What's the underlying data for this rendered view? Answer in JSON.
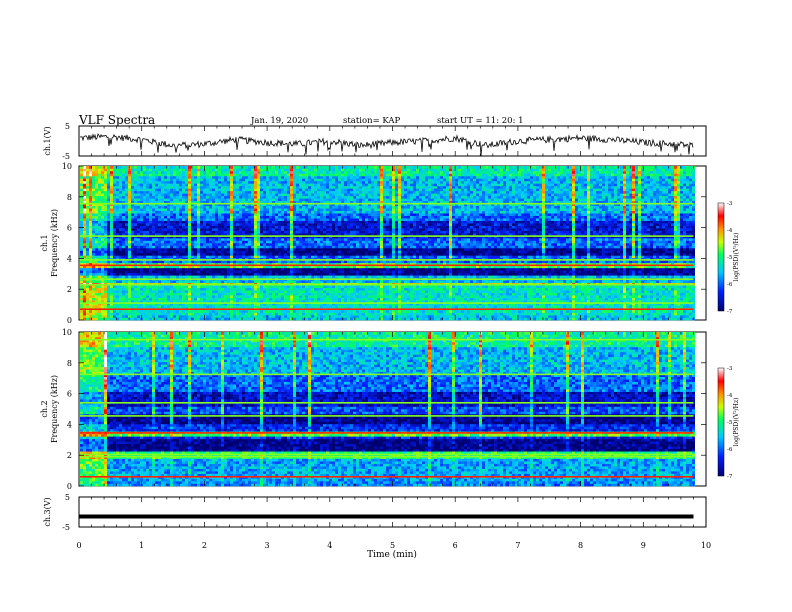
{
  "header": {
    "title": "VLF Spectra",
    "date": "Jan. 19, 2020",
    "station": "station= KAP",
    "start": "start  UT =   11: 20: 1"
  },
  "chart_data": [
    {
      "type": "line",
      "panel": "ch1-waveform",
      "ylabel": "ch.1(V)",
      "ylim": [
        -5,
        5
      ],
      "yticks": [
        "5",
        "-5"
      ],
      "xlim": [
        0,
        10
      ],
      "x": [
        0,
        0.5,
        1,
        1.5,
        2,
        2.5,
        3,
        3.5,
        4,
        4.5,
        5,
        5.5,
        6,
        6.5,
        7,
        7.5,
        8,
        8.5,
        9,
        9.5,
        9.8
      ],
      "y": [
        1,
        1.5,
        0.5,
        -1.5,
        -1,
        0.5,
        -0.5,
        -1,
        0,
        -1.5,
        -0.5,
        0,
        1,
        -1.5,
        0,
        0.5,
        1,
        0.5,
        -0.5,
        -1,
        -1.5
      ],
      "color": "#000000"
    },
    {
      "type": "heatmap",
      "panel": "ch1-spectrogram",
      "ylabel": "ch.1\nFrequency (kHz)",
      "ylim": [
        0,
        10
      ],
      "yticks": [
        "0",
        "2",
        "4",
        "6",
        "8",
        "10"
      ],
      "xlim": [
        0,
        10
      ],
      "data_end_min": 9.8,
      "colorbar": {
        "label": "log(PSD)(V²/Hz)",
        "range": [
          -7,
          -3
        ],
        "ticks": [
          "-3",
          "-4",
          "-5",
          "-6",
          "-7"
        ],
        "scale": "rainbow"
      }
    },
    {
      "type": "heatmap",
      "panel": "ch2-spectrogram",
      "ylabel": "ch.2\nFrequency (kHz)",
      "ylim": [
        0,
        10
      ],
      "yticks": [
        "0",
        "2",
        "4",
        "6",
        "8",
        "10"
      ],
      "xlim": [
        0,
        10
      ],
      "data_end_min": 9.8,
      "colorbar": {
        "label": "log(PSD)(V²/Hz)",
        "range": [
          -7,
          -3
        ],
        "ticks": [
          "-3",
          "-4",
          "-5",
          "-6",
          "-7"
        ],
        "scale": "rainbow"
      }
    },
    {
      "type": "line",
      "panel": "ch3-waveform",
      "ylabel": "ch.3(V)",
      "ylim": [
        -5,
        5
      ],
      "yticks": [
        "5",
        "-5"
      ],
      "xlim": [
        0,
        10
      ],
      "x": [
        0,
        9.8
      ],
      "y": [
        -1.5,
        -1.5
      ],
      "color": "#000000"
    }
  ],
  "xaxis": {
    "label": "Time (min)",
    "ticks": [
      "0",
      "1",
      "2",
      "3",
      "4",
      "5",
      "6",
      "7",
      "8",
      "9",
      "10"
    ]
  }
}
